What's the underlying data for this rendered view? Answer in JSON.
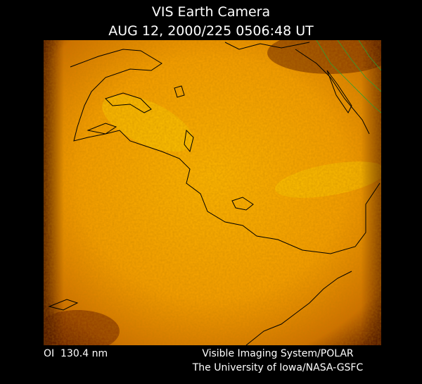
{
  "header": {
    "title": "VIS Earth Camera",
    "timestamp": "AUG 12, 2000/225 0506:48 UT"
  },
  "footer": {
    "filter": "OI  130.4 nm",
    "instrument": "Visible Imaging System/POLAR",
    "institution": "The University of Iowa/NASA-GSFC"
  }
}
